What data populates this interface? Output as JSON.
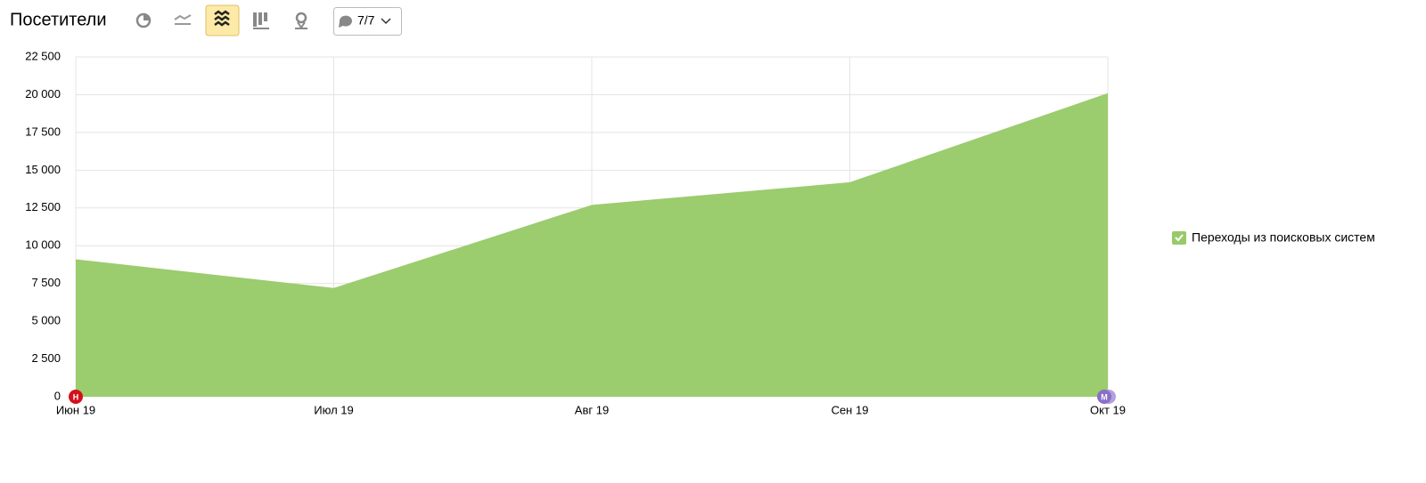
{
  "toolbar": {
    "counter": "7/7"
  },
  "chart_data": {
    "type": "area",
    "title": "Посетители",
    "categories": [
      "Июн 19",
      "Июл 19",
      "Авг 19",
      "Сен 19",
      "Окт 19"
    ],
    "series": [
      {
        "name": "Переходы из поисковых систем",
        "color": "#98ca69",
        "values": [
          9100,
          7200,
          12700,
          14200,
          20100
        ]
      }
    ],
    "ylim": [
      0,
      22500
    ],
    "yticks": [
      0,
      {
        "value": 2500,
        "label": "2 500"
      },
      {
        "value": 5000,
        "label": "5 000"
      },
      {
        "value": 7500,
        "label": "7 500"
      },
      {
        "value": 10000,
        "label": "10 000"
      },
      {
        "value": 12500,
        "label": "12 500"
      },
      {
        "value": 15000,
        "label": "15 000"
      },
      {
        "value": 17500,
        "label": "17 500"
      },
      {
        "value": 20000,
        "label": "20 000"
      },
      {
        "value": 22500,
        "label": "22 500"
      }
    ],
    "grid": true,
    "annotations": [
      "Н",
      "М"
    ]
  }
}
